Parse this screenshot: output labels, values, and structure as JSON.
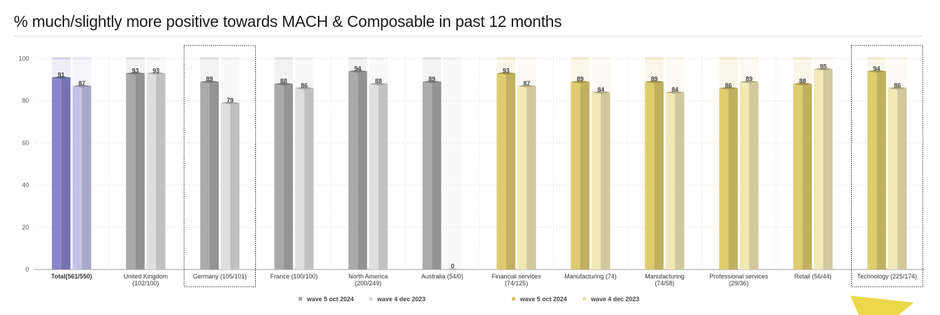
{
  "title": "% much/slightly more positive towards MACH & Composable in past 12 months",
  "colors": {
    "total_dark": "#8480c2",
    "total_light": "#bdbbde",
    "grey_dark": "#a3a3a3",
    "grey_light": "#d6d6d6",
    "yellow_dark": "#d6c46a",
    "yellow_light": "#e8dfae",
    "grid": "#e6e6e6",
    "accent_shape": "#ecd84a"
  },
  "legend": [
    {
      "label": "wave 5 oct 2024",
      "color": "#a3a3a3"
    },
    {
      "label": "wave 4 dec 2023",
      "color": "#d6d6d6"
    },
    {
      "label": "wave 5 oct 2024",
      "color": "#d6c46a"
    },
    {
      "label": "wave 4 dec 2023",
      "color": "#e8dfae"
    }
  ],
  "chart_data": {
    "type": "bar",
    "title": "% much/slightly more positive towards MACH & Composable in past 12 months",
    "ylim": [
      0,
      100
    ],
    "yticks": [
      0,
      20,
      40,
      60,
      80,
      100
    ],
    "grid": true,
    "legend_position": "bottom",
    "categories": [
      {
        "label": "Total(561/550)",
        "bold": true,
        "palette": "total",
        "boxed": false
      },
      {
        "label": "United Kingdom (102/100)",
        "palette": "grey",
        "boxed": false
      },
      {
        "label": "Germany (105/101)",
        "palette": "grey",
        "boxed": true
      },
      {
        "label": "France (100/100)",
        "palette": "grey",
        "boxed": false
      },
      {
        "label": "North America (200/249)",
        "palette": "grey",
        "boxed": false
      },
      {
        "label": "Australia (54/0)",
        "palette": "grey",
        "boxed": false
      },
      {
        "label": "Financial services (74/125)",
        "palette": "yellow",
        "boxed": false
      },
      {
        "label": "Manufacturing (74)",
        "palette": "yellow",
        "boxed": false
      },
      {
        "label": "Manufacturing (74/58)",
        "palette": "yellow",
        "boxed": false
      },
      {
        "label": "Professional services (29/36)",
        "palette": "yellow",
        "boxed": false
      },
      {
        "label": "Retail (56/44)",
        "palette": "yellow",
        "boxed": false
      },
      {
        "label": "Technology (225/174)",
        "palette": "yellow",
        "boxed": true
      }
    ],
    "series": [
      {
        "name": "wave 5 oct 2024",
        "values": [
          91,
          93,
          89,
          88,
          94,
          89,
          93,
          89,
          89,
          86,
          88,
          94
        ]
      },
      {
        "name": "wave 4 dec 2023",
        "values": [
          87,
          93,
          79,
          86,
          88,
          0,
          87,
          84,
          84,
          89,
          95,
          86
        ]
      }
    ]
  }
}
